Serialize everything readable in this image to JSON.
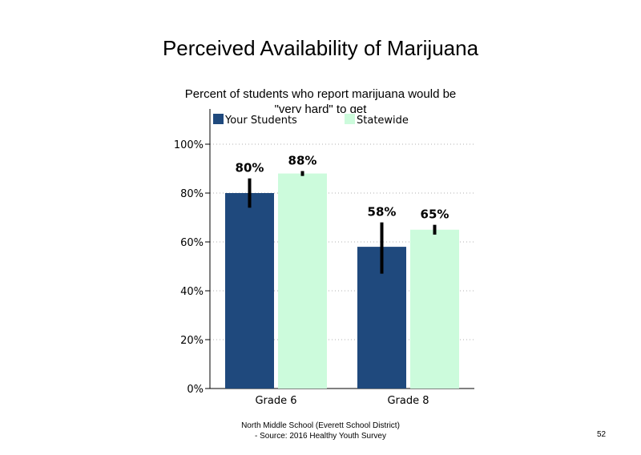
{
  "page": {
    "footer_line1": "North Middle School (Everett School District)",
    "footer_line2": "- Source: 2016 Healthy Youth Survey",
    "page_number": "52"
  },
  "chart_data": {
    "type": "bar",
    "title": "Perceived Availability of Marijuana",
    "subtitle": "Percent of students  who report marijuana would be \"very hard\" to get",
    "xlabel": "",
    "ylabel": "",
    "categories": [
      "Grade 6",
      "Grade 8"
    ],
    "series": [
      {
        "name": "Your Students",
        "color": "#1f497d",
        "values": [
          80,
          58
        ],
        "labels": [
          "80%",
          "58%"
        ],
        "error_low": [
          74,
          47
        ],
        "error_high": [
          86,
          68
        ]
      },
      {
        "name": "Statewide",
        "color": "#ccfbdc",
        "values": [
          88,
          65
        ],
        "labels": [
          "88%",
          "65%"
        ],
        "error_low": [
          87,
          63
        ],
        "error_high": [
          89,
          67
        ]
      }
    ],
    "ylim": [
      0,
      100
    ],
    "yticks": [
      0,
      20,
      40,
      60,
      80,
      100
    ],
    "ytick_labels": [
      "0%",
      "20%",
      "40%",
      "60%",
      "80%",
      "100%"
    ],
    "grid": "dotted horizontal",
    "legend_position": "top"
  }
}
